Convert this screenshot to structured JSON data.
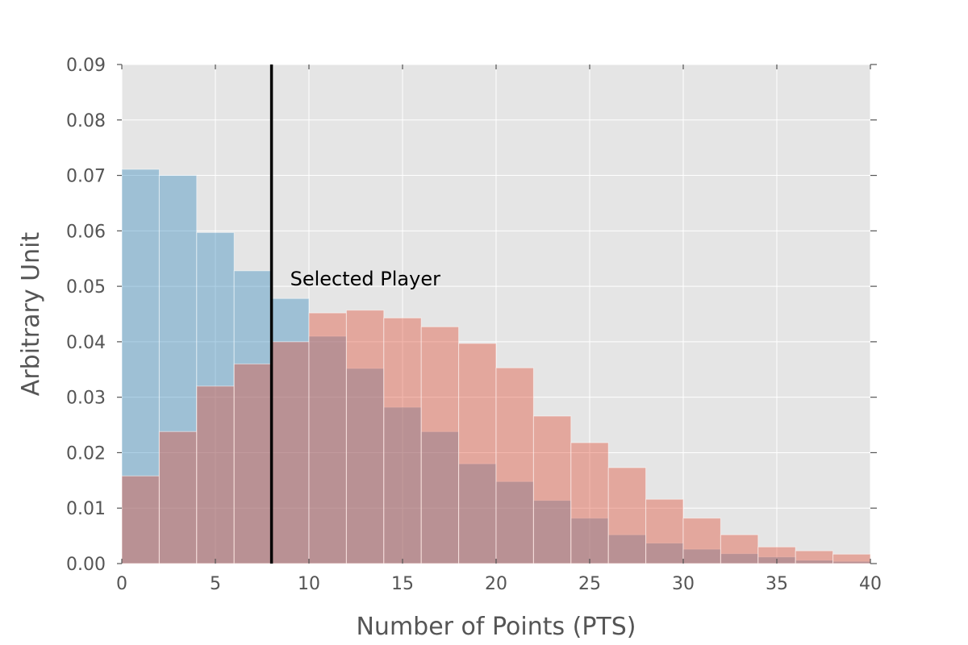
{
  "chart_data": {
    "type": "histogram",
    "title": "",
    "xlabel": "Number of Points (PTS)",
    "ylabel": "Arbitrary Unit",
    "xlim": [
      0,
      40
    ],
    "ylim": [
      0,
      0.09
    ],
    "xticks": [
      "0",
      "5",
      "10",
      "15",
      "20",
      "25",
      "30",
      "35",
      "40"
    ],
    "yticks": [
      "0.00",
      "0.01",
      "0.02",
      "0.03",
      "0.04",
      "0.05",
      "0.06",
      "0.07",
      "0.08",
      "0.09"
    ],
    "grid": true,
    "bin_edges": [
      0,
      2,
      4,
      6,
      8,
      10,
      12,
      14,
      16,
      18,
      20,
      22,
      24,
      26,
      28,
      30,
      32,
      34,
      36,
      38,
      40
    ],
    "series": [
      {
        "color": "#348ABD",
        "values": [
          0.0711,
          0.07,
          0.0597,
          0.0528,
          0.0478,
          0.041,
          0.0352,
          0.0282,
          0.0238,
          0.018,
          0.0148,
          0.0114,
          0.0082,
          0.0052,
          0.0037,
          0.0026,
          0.0018,
          0.0012,
          0.0006,
          0.0004
        ]
      },
      {
        "color": "#E24A33",
        "values": [
          0.0158,
          0.0238,
          0.032,
          0.036,
          0.04,
          0.0452,
          0.0457,
          0.0443,
          0.0427,
          0.0397,
          0.0353,
          0.0266,
          0.0218,
          0.0173,
          0.0116,
          0.0082,
          0.0052,
          0.003,
          0.0023,
          0.0017
        ]
      }
    ],
    "vline": {
      "x": 8,
      "label": "Selected Player",
      "color": "#000000"
    }
  },
  "colors": {
    "plot_background": "#E5E5E5",
    "grid": "#FFFFFF",
    "text": "#555555"
  }
}
